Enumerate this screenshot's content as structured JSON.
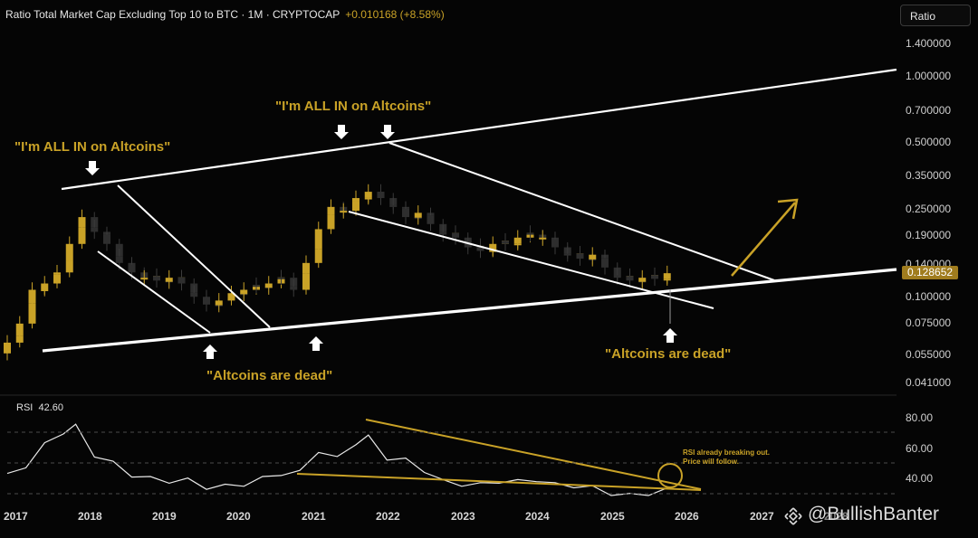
{
  "header": {
    "title": "Ratio Total Market Cap Excluding Top 10 to BTC · 1M · CRYPTOCAP",
    "change": "+0.010168 (+8.58%)"
  },
  "scale_button": "Ratio",
  "current_price": "0.128652",
  "rsi": {
    "label": "RSI",
    "value": "42.60",
    "note_line1": "RSI already breaking out.",
    "note_line2": "Price will follow."
  },
  "watermark": "@BullishBanter",
  "annotations": {
    "all_in_1": "\"I'm ALL IN on Altcoins\"",
    "all_in_2": "\"I'm ALL IN on Altcoins\"",
    "dead_1": "\"Altcoins are dead\"",
    "dead_2": "\"Altcoins are dead\""
  },
  "colors": {
    "up": "#c9a227",
    "down": "#2a2a2a",
    "line": "#ffffff",
    "accent": "#c9a227",
    "background": "#050505"
  },
  "chart_data": [
    {
      "type": "candlestick",
      "title": "Ratio Total Market Cap Excluding Top 10 to BTC · 1M · CRYPTOCAP",
      "y_scale": "log",
      "y_ticks": [
        "1.400000",
        "1.000000",
        "0.700000",
        "0.500000",
        "0.350000",
        "0.250000",
        "0.190000",
        "0.140000",
        "0.100000",
        "0.075000",
        "0.055000",
        "0.041000"
      ],
      "x_ticks": [
        "2017",
        "2018",
        "2019",
        "2020",
        "2021",
        "2022",
        "2023",
        "2024",
        "2025",
        "2026",
        "2027",
        "2028"
      ],
      "ylim": [
        0.041,
        1.4
      ],
      "last_value": 0.128652,
      "series_close_approx": [
        [
          "2017-01",
          0.045
        ],
        [
          "2017-03",
          0.06
        ],
        [
          "2017-05",
          0.1
        ],
        [
          "2017-07",
          0.11
        ],
        [
          "2017-09",
          0.13
        ],
        [
          "2017-11",
          0.2
        ],
        [
          "2018-01",
          0.3
        ],
        [
          "2018-03",
          0.24
        ],
        [
          "2018-05",
          0.2
        ],
        [
          "2018-07",
          0.15
        ],
        [
          "2018-09",
          0.13
        ],
        [
          "2018-11",
          0.12
        ],
        [
          "2019-01",
          0.115
        ],
        [
          "2019-03",
          0.12
        ],
        [
          "2019-05",
          0.11
        ],
        [
          "2019-07",
          0.09
        ],
        [
          "2019-09",
          0.08
        ],
        [
          "2019-11",
          0.085
        ],
        [
          "2020-01",
          0.095
        ],
        [
          "2020-03",
          0.1
        ],
        [
          "2020-05",
          0.105
        ],
        [
          "2020-07",
          0.11
        ],
        [
          "2020-09",
          0.12
        ],
        [
          "2020-11",
          0.1
        ],
        [
          "2021-01",
          0.15
        ],
        [
          "2021-03",
          0.25
        ],
        [
          "2021-05",
          0.35
        ],
        [
          "2021-07",
          0.33
        ],
        [
          "2021-09",
          0.4
        ],
        [
          "2021-11",
          0.44
        ],
        [
          "2022-01",
          0.4
        ],
        [
          "2022-03",
          0.35
        ],
        [
          "2022-05",
          0.3
        ],
        [
          "2022-07",
          0.32
        ],
        [
          "2022-09",
          0.27
        ],
        [
          "2022-11",
          0.23
        ],
        [
          "2023-01",
          0.22
        ],
        [
          "2023-03",
          0.19
        ],
        [
          "2023-05",
          0.18
        ],
        [
          "2023-07",
          0.2
        ],
        [
          "2023-09",
          0.2
        ],
        [
          "2023-11",
          0.22
        ],
        [
          "2024-01",
          0.23
        ],
        [
          "2024-03",
          0.22
        ],
        [
          "2024-05",
          0.19
        ],
        [
          "2024-07",
          0.17
        ],
        [
          "2024-09",
          0.16
        ],
        [
          "2024-11",
          0.17
        ],
        [
          "2025-01",
          0.14
        ],
        [
          "2025-03",
          0.12
        ],
        [
          "2025-05",
          0.115
        ],
        [
          "2025-07",
          0.12
        ],
        [
          "2025-09",
          0.118
        ],
        [
          "2025-11",
          0.1285
        ]
      ],
      "annotations": [
        "\"I'm ALL IN on Altcoins\"",
        "\"Altcoins are dead\""
      ]
    },
    {
      "type": "line",
      "name": "RSI 42.60",
      "y_ticks": [
        "80.00",
        "60.00",
        "40.00"
      ],
      "ylim": [
        30,
        85
      ],
      "values": [
        [
          "2017-01",
          52
        ],
        [
          "2017-04",
          58
        ],
        [
          "2017-07",
          72
        ],
        [
          "2017-10",
          80
        ],
        [
          "2017-12",
          84
        ],
        [
          "2018-03",
          65
        ],
        [
          "2018-06",
          60
        ],
        [
          "2018-09",
          52
        ],
        [
          "2018-12",
          50
        ],
        [
          "2019-03",
          48
        ],
        [
          "2019-06",
          49
        ],
        [
          "2019-09",
          44
        ],
        [
          "2019-12",
          45
        ],
        [
          "2020-03",
          46
        ],
        [
          "2020-06",
          50
        ],
        [
          "2020-09",
          53
        ],
        [
          "2020-12",
          54
        ],
        [
          "2021-03",
          68
        ],
        [
          "2021-06",
          63
        ],
        [
          "2021-09",
          73
        ],
        [
          "2021-11",
          77
        ],
        [
          "2022-02",
          63
        ],
        [
          "2022-05",
          62
        ],
        [
          "2022-08",
          55
        ],
        [
          "2022-11",
          48
        ],
        [
          "2023-02",
          46
        ],
        [
          "2023-05",
          46
        ],
        [
          "2023-08",
          48
        ],
        [
          "2023-11",
          48
        ],
        [
          "2024-02",
          49
        ],
        [
          "2024-05",
          46
        ],
        [
          "2024-08",
          45
        ],
        [
          "2024-11",
          44
        ],
        [
          "2025-02",
          40
        ],
        [
          "2025-05",
          39
        ],
        [
          "2025-08",
          40
        ],
        [
          "2025-11",
          42.6
        ]
      ]
    }
  ]
}
